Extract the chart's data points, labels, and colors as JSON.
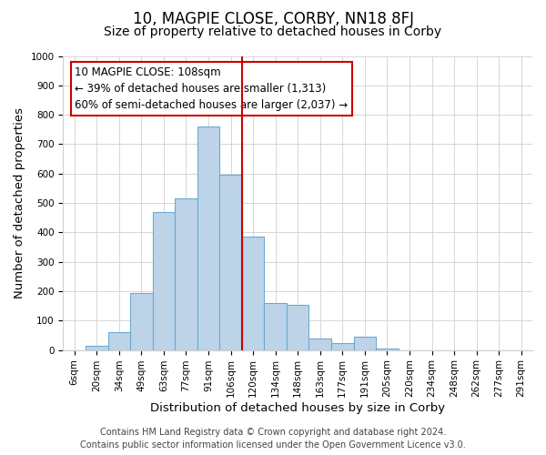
{
  "title": "10, MAGPIE CLOSE, CORBY, NN18 8FJ",
  "subtitle": "Size of property relative to detached houses in Corby",
  "xlabel": "Distribution of detached houses by size in Corby",
  "ylabel": "Number of detached properties",
  "bar_labels": [
    "6sqm",
    "20sqm",
    "34sqm",
    "49sqm",
    "63sqm",
    "77sqm",
    "91sqm",
    "106sqm",
    "120sqm",
    "134sqm",
    "148sqm",
    "163sqm",
    "177sqm",
    "191sqm",
    "205sqm",
    "220sqm",
    "234sqm",
    "248sqm",
    "262sqm",
    "277sqm",
    "291sqm"
  ],
  "bar_values": [
    0,
    15,
    60,
    195,
    470,
    515,
    760,
    595,
    385,
    160,
    155,
    40,
    25,
    45,
    5,
    0,
    0,
    0,
    0,
    0,
    0
  ],
  "bar_color": "#bdd4e8",
  "bar_edge_color": "#6aaad4",
  "vline_color": "#cc0000",
  "annotation_line1": "10 MAGPIE CLOSE: 108sqm",
  "annotation_line2": "← 39% of detached houses are smaller (1,313)",
  "annotation_line3": "60% of semi-detached houses are larger (2,037) →",
  "annotation_box_color": "#ffffff",
  "annotation_box_edge_color": "#cc0000",
  "ylim": [
    0,
    1000
  ],
  "yticks": [
    0,
    100,
    200,
    300,
    400,
    500,
    600,
    700,
    800,
    900,
    1000
  ],
  "footer_line1": "Contains HM Land Registry data © Crown copyright and database right 2024.",
  "footer_line2": "Contains public sector information licensed under the Open Government Licence v3.0.",
  "bg_color": "#ffffff",
  "grid_color": "#d0d0d0",
  "title_fontsize": 12,
  "subtitle_fontsize": 10,
  "axis_label_fontsize": 9.5,
  "tick_fontsize": 7.5,
  "annotation_fontsize": 8.5,
  "footer_fontsize": 7
}
